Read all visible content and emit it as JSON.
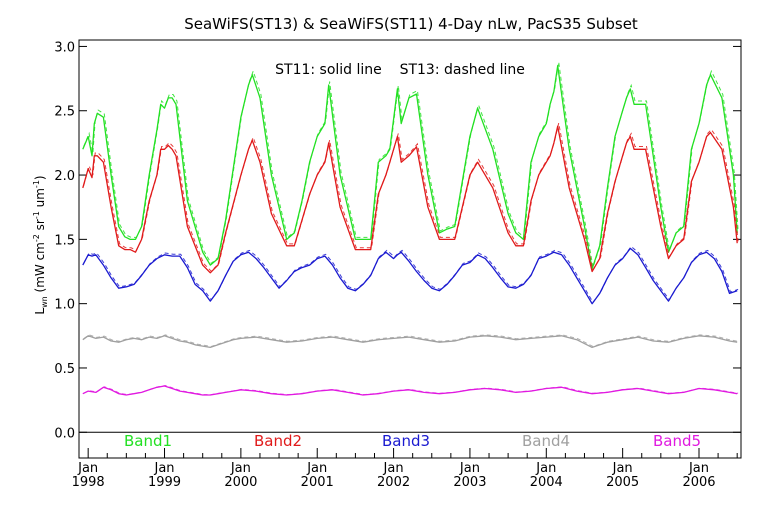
{
  "chart_data": {
    "type": "line",
    "title": "SeaWiFS(ST13) & SeaWiFS(ST11) 4-Day nLw, PacS35 Subset",
    "annotation": "ST11: solid line    ST13: dashed line",
    "ylabel": {
      "base": "L",
      "sub": "wn",
      "rest": " (mW cm",
      "sup1": "-2",
      "mid": " sr",
      "sup2": "-1",
      "mid2": " um",
      "sup3": "-1",
      "close": ")"
    },
    "xlim": [
      1997.88,
      2006.55
    ],
    "ylim": [
      -0.2,
      3.05
    ],
    "yticks": [
      0.0,
      0.5,
      1.0,
      1.5,
      2.0,
      2.5,
      3.0
    ],
    "ytick_labels": [
      "0.0",
      "0.5",
      "1.0",
      "1.5",
      "2.0",
      "2.5",
      "3.0"
    ],
    "xticks": [
      {
        "pos": 1998,
        "month": "Jan",
        "year": "1998"
      },
      {
        "pos": 1999,
        "month": "Jan",
        "year": "1999"
      },
      {
        "pos": 2000,
        "month": "Jan",
        "year": "2000"
      },
      {
        "pos": 2001,
        "month": "Jan",
        "year": "2001"
      },
      {
        "pos": 2002,
        "month": "Jan",
        "year": "2002"
      },
      {
        "pos": 2003,
        "month": "Jan",
        "year": "2003"
      },
      {
        "pos": 2004,
        "month": "Jan",
        "year": "2004"
      },
      {
        "pos": 2005,
        "month": "Jan",
        "year": "2005"
      },
      {
        "pos": 2006,
        "month": "Jan",
        "year": "2006"
      }
    ],
    "grid": false,
    "series": [
      {
        "name": "Band1",
        "color": "#22e022",
        "x": [
          1997.93,
          1998.0,
          1998.05,
          1998.08,
          1998.12,
          1998.2,
          1998.3,
          1998.4,
          1998.48,
          1998.55,
          1998.62,
          1998.7,
          1998.8,
          1998.9,
          1998.95,
          1999.0,
          1999.05,
          1999.1,
          1999.15,
          1999.3,
          1999.5,
          1999.6,
          1999.7,
          1999.8,
          2000.0,
          2000.1,
          2000.15,
          2000.25,
          2000.4,
          2000.6,
          2000.7,
          2000.8,
          2000.9,
          2001.0,
          2001.1,
          2001.15,
          2001.3,
          2001.5,
          2001.6,
          2001.7,
          2001.8,
          2001.9,
          2001.95,
          2002.05,
          2002.1,
          2002.2,
          2002.3,
          2002.45,
          2002.6,
          2002.7,
          2002.8,
          2003.0,
          2003.1,
          2003.3,
          2003.5,
          2003.6,
          2003.7,
          2003.8,
          2003.9,
          2004.0,
          2004.05,
          2004.1,
          2004.15,
          2004.3,
          2004.5,
          2004.6,
          2004.7,
          2004.8,
          2004.9,
          2005.0,
          2005.05,
          2005.1,
          2005.15,
          2005.3,
          2005.5,
          2005.6,
          2005.7,
          2005.8,
          2005.9,
          2006.0,
          2006.1,
          2006.15,
          2006.3,
          2006.45,
          2006.5
        ],
        "y": [
          2.2,
          2.3,
          2.15,
          2.4,
          2.48,
          2.45,
          2.0,
          1.6,
          1.52,
          1.5,
          1.5,
          1.6,
          2.0,
          2.35,
          2.55,
          2.52,
          2.6,
          2.6,
          2.55,
          1.8,
          1.4,
          1.3,
          1.35,
          1.65,
          2.45,
          2.7,
          2.78,
          2.6,
          2.0,
          1.5,
          1.55,
          1.8,
          2.1,
          2.3,
          2.4,
          2.7,
          2.0,
          1.5,
          1.5,
          1.5,
          2.1,
          2.15,
          2.2,
          2.67,
          2.4,
          2.6,
          2.63,
          2.0,
          1.55,
          1.58,
          1.6,
          2.3,
          2.52,
          2.2,
          1.7,
          1.55,
          1.5,
          2.1,
          2.3,
          2.4,
          2.55,
          2.65,
          2.85,
          2.2,
          1.6,
          1.27,
          1.45,
          1.9,
          2.3,
          2.5,
          2.6,
          2.67,
          2.55,
          2.55,
          1.75,
          1.4,
          1.55,
          1.6,
          2.2,
          2.4,
          2.7,
          2.78,
          2.6,
          2.0,
          1.55
        ]
      },
      {
        "name": "Band2",
        "color": "#e01a1a",
        "x": [
          1997.93,
          1998.0,
          1998.05,
          1998.08,
          1998.12,
          1998.2,
          1998.3,
          1998.4,
          1998.48,
          1998.55,
          1998.62,
          1998.7,
          1998.8,
          1998.9,
          1998.95,
          1999.0,
          1999.05,
          1999.1,
          1999.15,
          1999.3,
          1999.5,
          1999.6,
          1999.7,
          1999.8,
          2000.0,
          2000.1,
          2000.15,
          2000.25,
          2000.4,
          2000.6,
          2000.7,
          2000.8,
          2000.9,
          2001.0,
          2001.1,
          2001.15,
          2001.3,
          2001.5,
          2001.6,
          2001.7,
          2001.8,
          2001.9,
          2001.95,
          2002.05,
          2002.1,
          2002.2,
          2002.3,
          2002.45,
          2002.6,
          2002.7,
          2002.8,
          2003.0,
          2003.1,
          2003.3,
          2003.5,
          2003.6,
          2003.7,
          2003.8,
          2003.9,
          2004.0,
          2004.05,
          2004.1,
          2004.15,
          2004.3,
          2004.5,
          2004.6,
          2004.7,
          2004.8,
          2004.9,
          2005.0,
          2005.05,
          2005.1,
          2005.15,
          2005.3,
          2005.5,
          2005.6,
          2005.7,
          2005.8,
          2005.9,
          2006.0,
          2006.1,
          2006.15,
          2006.3,
          2006.45,
          2006.5
        ],
        "y": [
          1.9,
          2.05,
          1.98,
          2.15,
          2.15,
          2.1,
          1.75,
          1.45,
          1.42,
          1.42,
          1.4,
          1.5,
          1.8,
          2.0,
          2.2,
          2.2,
          2.23,
          2.2,
          2.15,
          1.6,
          1.3,
          1.24,
          1.3,
          1.55,
          2.0,
          2.2,
          2.27,
          2.1,
          1.7,
          1.45,
          1.45,
          1.65,
          1.85,
          2.0,
          2.1,
          2.25,
          1.75,
          1.42,
          1.42,
          1.42,
          1.85,
          2.0,
          2.1,
          2.3,
          2.1,
          2.15,
          2.22,
          1.75,
          1.5,
          1.5,
          1.5,
          2.0,
          2.1,
          1.9,
          1.55,
          1.45,
          1.45,
          1.8,
          2.0,
          2.1,
          2.15,
          2.25,
          2.38,
          1.9,
          1.5,
          1.25,
          1.35,
          1.7,
          1.95,
          2.15,
          2.25,
          2.3,
          2.2,
          2.2,
          1.6,
          1.35,
          1.45,
          1.5,
          1.95,
          2.1,
          2.3,
          2.33,
          2.2,
          1.75,
          1.47
        ]
      },
      {
        "name": "Band3",
        "color": "#1a1ad0",
        "x": [
          1997.93,
          1998.0,
          1998.05,
          1998.1,
          1998.2,
          1998.3,
          1998.4,
          1998.5,
          1998.6,
          1998.7,
          1998.8,
          1998.9,
          1999.0,
          1999.1,
          1999.2,
          1999.3,
          1999.4,
          1999.5,
          1999.6,
          1999.7,
          1999.8,
          1999.9,
          2000.0,
          2000.1,
          2000.2,
          2000.3,
          2000.4,
          2000.5,
          2000.6,
          2000.7,
          2000.8,
          2000.9,
          2001.0,
          2001.1,
          2001.2,
          2001.3,
          2001.4,
          2001.5,
          2001.6,
          2001.7,
          2001.8,
          2001.9,
          2002.0,
          2002.05,
          2002.1,
          2002.2,
          2002.3,
          2002.4,
          2002.5,
          2002.6,
          2002.7,
          2002.8,
          2002.9,
          2003.0,
          2003.1,
          2003.2,
          2003.3,
          2003.4,
          2003.5,
          2003.6,
          2003.7,
          2003.8,
          2003.9,
          2004.0,
          2004.1,
          2004.2,
          2004.3,
          2004.4,
          2004.5,
          2004.6,
          2004.7,
          2004.8,
          2004.9,
          2005.0,
          2005.1,
          2005.2,
          2005.3,
          2005.4,
          2005.5,
          2005.6,
          2005.7,
          2005.8,
          2005.9,
          2006.0,
          2006.1,
          2006.2,
          2006.3,
          2006.4,
          2006.5
        ],
        "y": [
          1.3,
          1.38,
          1.37,
          1.38,
          1.3,
          1.2,
          1.12,
          1.13,
          1.15,
          1.22,
          1.3,
          1.35,
          1.38,
          1.37,
          1.37,
          1.28,
          1.15,
          1.1,
          1.02,
          1.1,
          1.22,
          1.33,
          1.38,
          1.4,
          1.35,
          1.28,
          1.2,
          1.12,
          1.18,
          1.25,
          1.28,
          1.3,
          1.35,
          1.37,
          1.3,
          1.2,
          1.12,
          1.1,
          1.15,
          1.22,
          1.35,
          1.4,
          1.35,
          1.38,
          1.4,
          1.33,
          1.25,
          1.18,
          1.12,
          1.1,
          1.15,
          1.22,
          1.3,
          1.32,
          1.38,
          1.35,
          1.28,
          1.2,
          1.13,
          1.12,
          1.15,
          1.22,
          1.35,
          1.37,
          1.4,
          1.38,
          1.3,
          1.2,
          1.1,
          1.0,
          1.08,
          1.2,
          1.3,
          1.35,
          1.43,
          1.38,
          1.28,
          1.18,
          1.1,
          1.02,
          1.12,
          1.2,
          1.32,
          1.38,
          1.4,
          1.35,
          1.25,
          1.08,
          1.1
        ]
      },
      {
        "name": "Band4",
        "color": "#a0a0a0",
        "x": [
          1997.93,
          1998.0,
          1998.1,
          1998.2,
          1998.3,
          1998.4,
          1998.5,
          1998.6,
          1998.7,
          1998.8,
          1998.9,
          1999.0,
          1999.1,
          1999.2,
          1999.3,
          1999.4,
          1999.5,
          1999.6,
          1999.7,
          1999.8,
          1999.9,
          2000.0,
          2000.2,
          2000.4,
          2000.6,
          2000.8,
          2001.0,
          2001.2,
          2001.4,
          2001.6,
          2001.8,
          2002.0,
          2002.2,
          2002.4,
          2002.6,
          2002.8,
          2003.0,
          2003.2,
          2003.4,
          2003.6,
          2003.8,
          2004.0,
          2004.2,
          2004.4,
          2004.6,
          2004.8,
          2005.0,
          2005.2,
          2005.4,
          2005.6,
          2005.8,
          2006.0,
          2006.2,
          2006.4,
          2006.5
        ],
        "y": [
          0.72,
          0.75,
          0.73,
          0.74,
          0.71,
          0.7,
          0.72,
          0.73,
          0.72,
          0.74,
          0.73,
          0.75,
          0.73,
          0.71,
          0.7,
          0.68,
          0.67,
          0.66,
          0.68,
          0.7,
          0.72,
          0.73,
          0.74,
          0.72,
          0.7,
          0.71,
          0.73,
          0.74,
          0.72,
          0.7,
          0.72,
          0.73,
          0.74,
          0.72,
          0.7,
          0.71,
          0.74,
          0.75,
          0.74,
          0.72,
          0.73,
          0.74,
          0.75,
          0.72,
          0.66,
          0.7,
          0.72,
          0.74,
          0.71,
          0.7,
          0.73,
          0.75,
          0.74,
          0.71,
          0.7
        ]
      },
      {
        "name": "Band5",
        "color": "#e01ae0",
        "x": [
          1997.93,
          1998.0,
          1998.1,
          1998.2,
          1998.3,
          1998.4,
          1998.5,
          1998.6,
          1998.7,
          1998.8,
          1998.9,
          1999.0,
          1999.1,
          1999.2,
          1999.3,
          1999.4,
          1999.5,
          1999.6,
          1999.7,
          1999.8,
          1999.9,
          2000.0,
          2000.2,
          2000.4,
          2000.6,
          2000.8,
          2001.0,
          2001.2,
          2001.4,
          2001.6,
          2001.8,
          2002.0,
          2002.2,
          2002.4,
          2002.6,
          2002.8,
          2003.0,
          2003.2,
          2003.4,
          2003.6,
          2003.8,
          2004.0,
          2004.2,
          2004.4,
          2004.6,
          2004.8,
          2005.0,
          2005.2,
          2005.4,
          2005.6,
          2005.8,
          2006.0,
          2006.2,
          2006.4,
          2006.5
        ],
        "y": [
          0.3,
          0.32,
          0.31,
          0.35,
          0.33,
          0.3,
          0.29,
          0.3,
          0.31,
          0.33,
          0.35,
          0.36,
          0.34,
          0.32,
          0.31,
          0.3,
          0.29,
          0.29,
          0.3,
          0.31,
          0.32,
          0.33,
          0.32,
          0.3,
          0.29,
          0.3,
          0.32,
          0.33,
          0.31,
          0.29,
          0.3,
          0.32,
          0.33,
          0.31,
          0.3,
          0.31,
          0.33,
          0.34,
          0.33,
          0.31,
          0.32,
          0.34,
          0.35,
          0.32,
          0.3,
          0.31,
          0.33,
          0.34,
          0.32,
          0.3,
          0.31,
          0.34,
          0.33,
          0.31,
          0.3
        ]
      }
    ]
  }
}
